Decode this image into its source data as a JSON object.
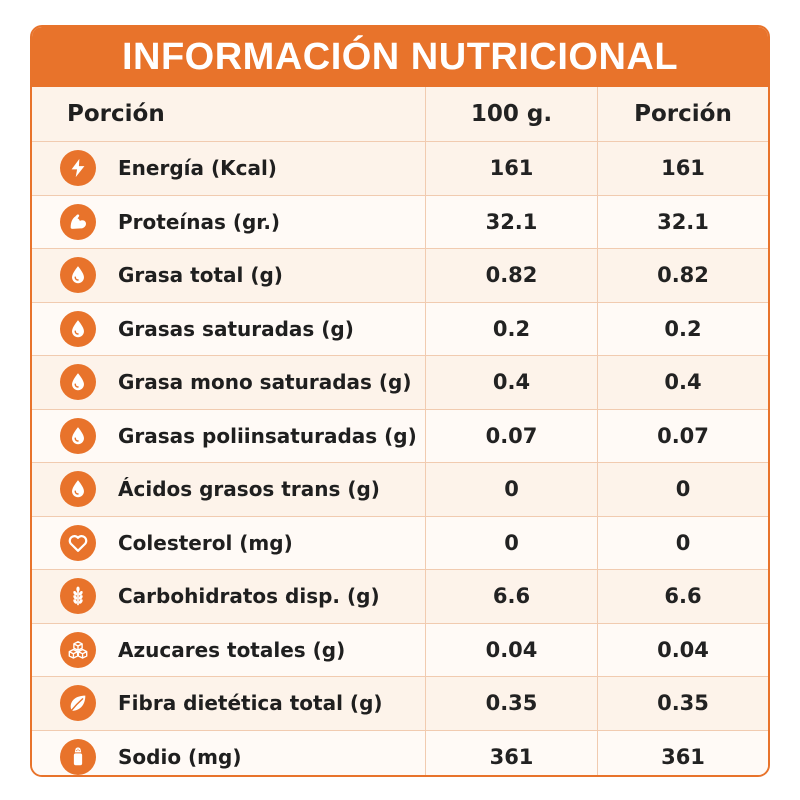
{
  "title": "INFORMACIÓN NUTRICIONAL",
  "header": {
    "col1": "Porción",
    "col2": "100 g.",
    "col3": "Porción"
  },
  "colors": {
    "accent": "#e8732b",
    "row_odd": "#fdf3ea",
    "row_even": "#fffaf6"
  },
  "rows": [
    {
      "icon": "lightning-icon",
      "label": "Energía (Kcal)",
      "per100": "161",
      "portion": "161"
    },
    {
      "icon": "muscle-arm-icon",
      "label": "Proteínas (gr.)",
      "per100": "32.1",
      "portion": "32.1"
    },
    {
      "icon": "droplet-icon",
      "label": "Grasa total (g)",
      "per100": "0.82",
      "portion": "0.82"
    },
    {
      "icon": "droplet-icon",
      "label": "Grasas saturadas (g)",
      "per100": "0.2",
      "portion": "0.2"
    },
    {
      "icon": "droplet-icon",
      "label": "Grasa mono saturadas (g)",
      "per100": "0.4",
      "portion": "0.4"
    },
    {
      "icon": "droplet-icon",
      "label": "Grasas poliinsaturadas (g)",
      "per100": "0.07",
      "portion": "0.07"
    },
    {
      "icon": "droplet-icon",
      "label": "Ácidos grasos trans (g)",
      "per100": "0",
      "portion": "0"
    },
    {
      "icon": "heart-icon",
      "label": "Colesterol (mg)",
      "per100": "0",
      "portion": "0"
    },
    {
      "icon": "wheat-icon",
      "label": "Carbohidratos disp. (g)",
      "per100": "6.6",
      "portion": "6.6"
    },
    {
      "icon": "sugar-cubes-icon",
      "label": "Azucares totales (g)",
      "per100": "0.04",
      "portion": "0.04"
    },
    {
      "icon": "leaf-icon",
      "label": "Fibra dietética total (g)",
      "per100": "0.35",
      "portion": "0.35"
    },
    {
      "icon": "salt-shaker-icon",
      "label": "Sodio (mg)",
      "per100": "361",
      "portion": "361"
    }
  ]
}
